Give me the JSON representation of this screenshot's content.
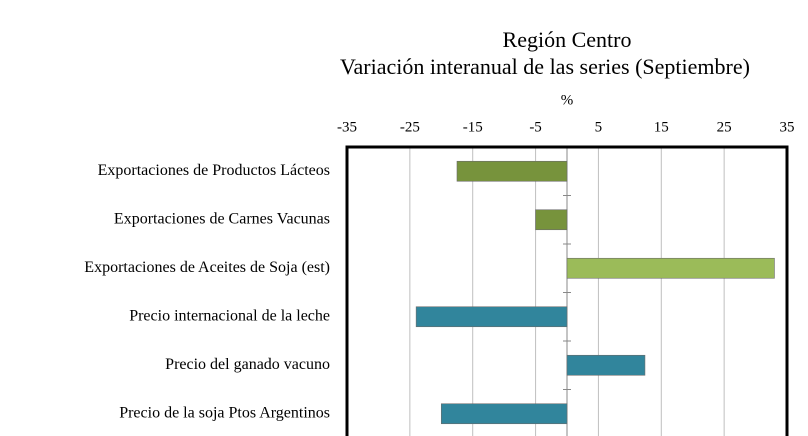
{
  "chart_data": {
    "type": "bar",
    "orientation": "horizontal",
    "title": [
      "Región Centro",
      "Variación interanual de las series (Septiembre)"
    ],
    "x_label": "%",
    "categories": [
      "Exportaciones de Productos Lácteos",
      "Exportaciones de Carnes Vacunas",
      "Exportaciones de Aceites de Soja (est)",
      "Precio internacional de la leche",
      "Precio del ganado vacuno",
      "Precio de la soja Ptos Argentinos"
    ],
    "values": [
      -17.5,
      -5,
      33,
      -24,
      12.4,
      -20
    ],
    "colors": [
      "#77933c",
      "#77933c",
      "#9bbb59",
      "#31859c",
      "#31859c",
      "#31859c"
    ],
    "xlim": [
      -35,
      35
    ],
    "xticks": [
      -35,
      -25,
      -15,
      -5,
      5,
      15,
      25,
      35
    ],
    "grid": true
  }
}
